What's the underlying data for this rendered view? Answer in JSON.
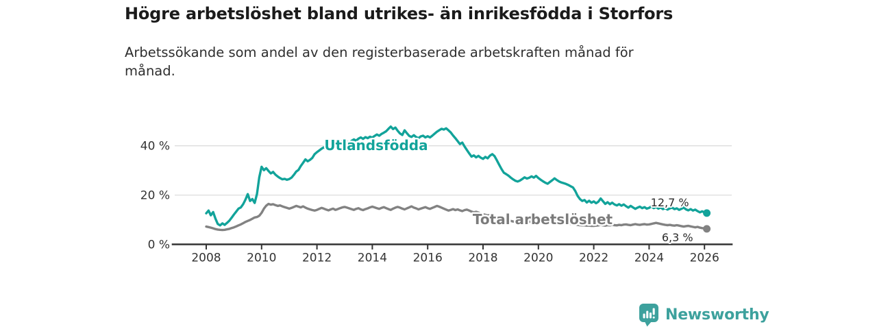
{
  "title": "Högre arbetslöshet bland utrikes- än inrikesfödda i Storfors",
  "subtitle": "Arbetssökande som andel av den registerbaserade arbetskraften månad för månad.",
  "branding": {
    "logo_text": "Newsworthy",
    "logo_icon": "bar-chart-speech-bubble-icon",
    "logo_color": "#3da19d"
  },
  "colors": {
    "background": "#ffffff",
    "title_text": "#1b1b1b",
    "body_text": "#2e2e2e",
    "axis": "#333333",
    "gridline": "#dcdcdc",
    "series_foreign_born": "#12a39a",
    "series_total": "#828282"
  },
  "chart_data": {
    "type": "line",
    "title": "Högre arbetslöshet bland utrikes- än inrikesfödda i Storfors",
    "subtitle": "Arbetssökande som andel av den registerbaserade arbetskraften månad för månad.",
    "x_unit": "month",
    "x_start": "2008-01",
    "x_end": "2026-02",
    "x_ticks": [
      2008,
      2010,
      2012,
      2014,
      2016,
      2018,
      2020,
      2022,
      2024,
      2026
    ],
    "ylim": [
      0,
      50
    ],
    "y_ticks": [
      {
        "value": 0,
        "label": "0 %"
      },
      {
        "value": 20,
        "label": "20 %"
      },
      {
        "value": 40,
        "label": "40 %"
      }
    ],
    "grid": "horizontal",
    "legend_position": "inline-labels",
    "series": [
      {
        "name": "Utlandsfödda",
        "color": "#12a39a",
        "end_label": "12,7 %",
        "last_value": 12.7,
        "values": [
          12.6,
          13.7,
          11.8,
          13.1,
          10.4,
          8.3,
          7.7,
          8.5,
          7.9,
          8.7,
          9.6,
          10.8,
          12.1,
          13.3,
          14.5,
          15.0,
          16.3,
          18.1,
          20.4,
          17.6,
          18.4,
          16.8,
          20.5,
          27.2,
          31.5,
          30.1,
          30.9,
          29.8,
          28.8,
          29.4,
          28.3,
          27.5,
          26.9,
          26.4,
          26.6,
          26.2,
          26.5,
          27.1,
          28.2,
          29.5,
          30.2,
          31.8,
          33.1,
          34.5,
          33.7,
          34.3,
          35.1,
          36.6,
          37.4,
          38.1,
          38.8,
          39.4,
          38.8,
          39.9,
          40.6,
          40.0,
          40.9,
          41.6,
          41.0,
          41.9,
          40.9,
          41.6,
          41.1,
          42.0,
          42.6,
          42.1,
          42.9,
          43.4,
          42.8,
          43.5,
          43.1,
          43.7,
          43.3,
          44.0,
          44.6,
          44.1,
          44.8,
          45.3,
          45.9,
          46.9,
          47.8,
          46.8,
          47.4,
          46.1,
          45.0,
          44.4,
          46.3,
          45.1,
          44.0,
          43.6,
          44.3,
          43.5,
          43.1,
          43.8,
          44.1,
          43.4,
          43.9,
          43.4,
          44.1,
          44.9,
          45.7,
          46.3,
          46.9,
          46.6,
          47.1,
          46.3,
          45.4,
          44.2,
          43.1,
          41.9,
          40.7,
          41.3,
          39.7,
          38.3,
          36.9,
          35.6,
          36.1,
          35.3,
          35.9,
          35.2,
          34.7,
          35.5,
          34.9,
          36.0,
          36.6,
          35.8,
          34.1,
          32.3,
          30.6,
          29.1,
          28.5,
          27.9,
          27.1,
          26.4,
          25.8,
          25.5,
          25.9,
          26.5,
          27.2,
          26.7,
          27.0,
          27.6,
          27.1,
          27.8,
          26.9,
          26.2,
          25.6,
          25.0,
          24.6,
          25.3,
          26.0,
          26.8,
          26.1,
          25.5,
          25.1,
          24.8,
          24.5,
          24.1,
          23.6,
          23.1,
          21.6,
          19.7,
          18.4,
          17.6,
          18.0,
          17.0,
          17.7,
          16.9,
          17.4,
          16.7,
          17.3,
          18.6,
          17.5,
          16.4,
          17.1,
          16.3,
          16.9,
          16.2,
          15.8,
          16.3,
          15.7,
          16.2,
          15.5,
          14.9,
          15.6,
          15.0,
          14.4,
          14.9,
          15.3,
          14.7,
          15.1,
          14.5,
          14.8,
          15.4,
          14.7,
          15.2,
          14.5,
          15.0,
          14.3,
          14.7,
          14.1,
          14.6,
          14.9,
          14.3,
          14.6,
          14.0,
          14.4,
          14.9,
          14.2,
          13.8,
          14.3,
          13.7,
          14.1,
          13.5,
          13.0,
          13.4,
          13.0,
          12.7
        ]
      },
      {
        "name": "Total arbetslöshet",
        "color": "#828282",
        "end_label": "6,3 %",
        "last_value": 6.3,
        "values": [
          7.2,
          7.0,
          6.8,
          6.5,
          6.2,
          6.0,
          5.9,
          5.8,
          5.9,
          6.1,
          6.3,
          6.6,
          6.9,
          7.3,
          7.7,
          8.1,
          8.6,
          9.1,
          9.5,
          9.9,
          10.4,
          10.9,
          11.1,
          11.6,
          12.8,
          14.5,
          15.7,
          16.4,
          16.1,
          16.3,
          15.9,
          15.6,
          15.8,
          15.4,
          15.1,
          14.8,
          14.5,
          14.8,
          15.2,
          15.6,
          15.3,
          15.0,
          15.4,
          14.9,
          14.5,
          14.2,
          13.9,
          13.7,
          14.0,
          14.4,
          14.8,
          14.5,
          14.1,
          13.8,
          14.2,
          14.5,
          14.0,
          14.3,
          14.7,
          15.0,
          15.2,
          14.9,
          14.6,
          14.3,
          14.0,
          14.4,
          14.7,
          14.2,
          13.9,
          14.3,
          14.6,
          15.0,
          15.3,
          15.0,
          14.7,
          14.4,
          14.8,
          15.1,
          14.7,
          14.3,
          14.0,
          14.5,
          14.9,
          15.2,
          14.9,
          14.5,
          14.2,
          14.6,
          15.0,
          15.4,
          14.9,
          14.6,
          14.2,
          14.5,
          14.8,
          15.1,
          14.7,
          14.4,
          14.8,
          15.2,
          15.6,
          15.3,
          14.9,
          14.5,
          14.1,
          13.7,
          14.0,
          14.3,
          13.9,
          14.2,
          13.8,
          13.5,
          13.9,
          14.1,
          13.7,
          13.3,
          13.0,
          13.2,
          12.9,
          12.5,
          12.2,
          12.0,
          11.7,
          11.9,
          11.6,
          11.3,
          11.0,
          10.7,
          10.4,
          10.1,
          9.9,
          9.7,
          9.5,
          9.3,
          9.1,
          9.0,
          9.2,
          9.4,
          9.6,
          9.4,
          9.2,
          9.1,
          9.0,
          9.1,
          9.3,
          9.5,
          9.8,
          10.1,
          10.3,
          10.1,
          9.9,
          9.7,
          9.5,
          9.3,
          9.1,
          8.9,
          8.7,
          8.5,
          8.3,
          8.1,
          8.0,
          7.9,
          7.8,
          7.7,
          7.7,
          7.6,
          7.6,
          7.5,
          7.5,
          7.6,
          7.7,
          7.9,
          7.7,
          7.6,
          7.8,
          7.7,
          7.9,
          7.8,
          7.7,
          7.9,
          7.8,
          8.0,
          8.1,
          7.9,
          7.8,
          8.0,
          8.2,
          8.0,
          7.9,
          8.1,
          8.2,
          8.0,
          8.1,
          8.3,
          8.5,
          8.7,
          8.5,
          8.3,
          8.1,
          7.9,
          7.8,
          7.9,
          7.7,
          7.6,
          7.8,
          7.6,
          7.4,
          7.2,
          7.4,
          7.5,
          7.3,
          7.1,
          6.9,
          7.1,
          6.8,
          6.6,
          6.5,
          6.3
        ]
      }
    ]
  }
}
